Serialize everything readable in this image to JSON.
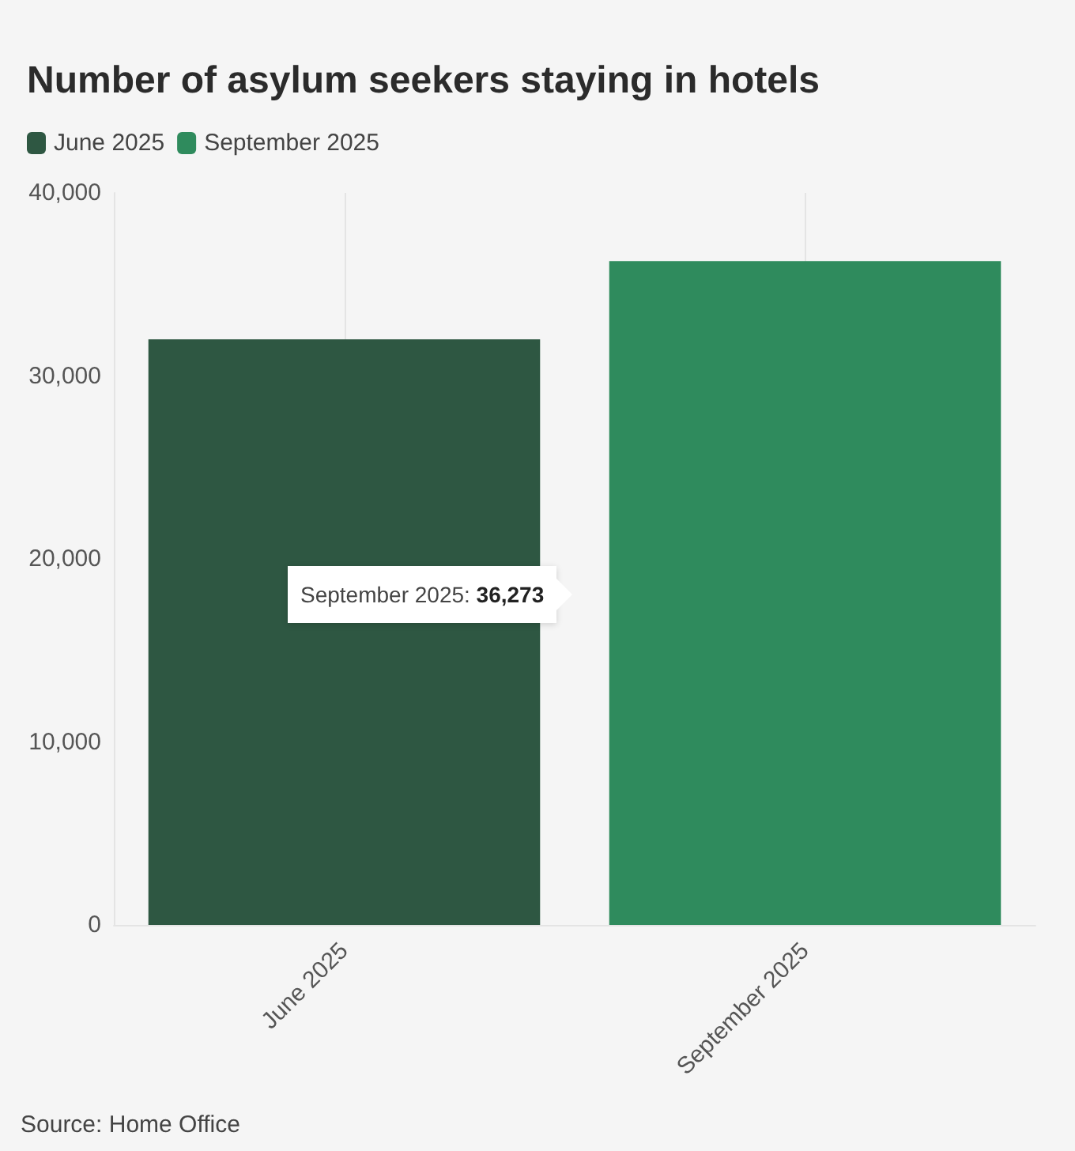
{
  "chart_data": {
    "type": "bar",
    "title": "Number of asylum seekers staying in hotels",
    "categories": [
      "June 2025",
      "September 2025"
    ],
    "series": [
      {
        "name": "June 2025",
        "color": "#2e5742",
        "values": [
          32000,
          null
        ]
      },
      {
        "name": "September 2025",
        "color": "#2f8b5d",
        "values": [
          null,
          36273
        ]
      }
    ],
    "ylim": [
      0,
      40000
    ],
    "yticks": [
      0,
      {
        "value": 10000,
        "label": "10,000"
      },
      {
        "value": 20000,
        "label": "20,000"
      },
      {
        "value": 30000,
        "label": "30,000"
      },
      {
        "value": 40000,
        "label": "40,000"
      }
    ],
    "grid": "x",
    "legend": "top left",
    "annotations": [
      "September 2025: 36,273",
      "Source: Home Office"
    ]
  }
}
